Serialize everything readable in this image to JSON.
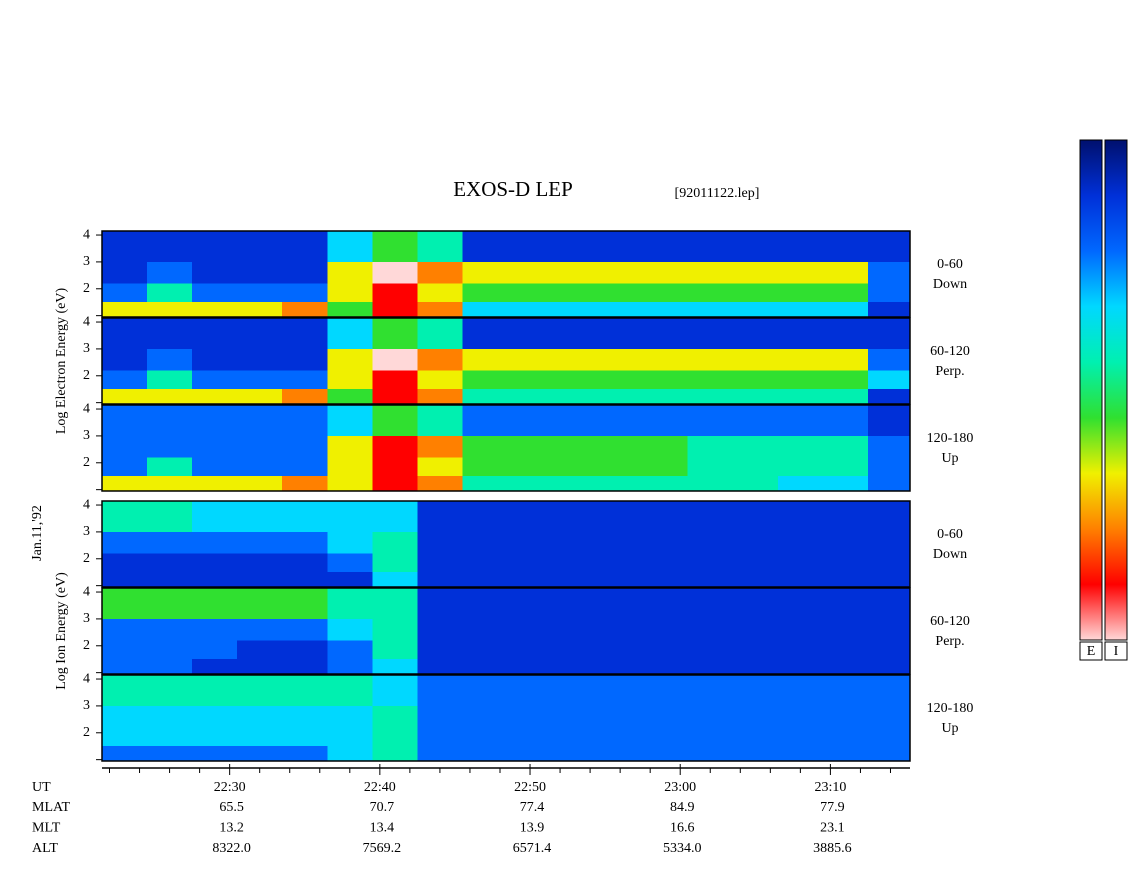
{
  "chart_data": {
    "type": "spectrogram",
    "title": "EXOS-D LEP",
    "subtitle": "[92011122.lep]",
    "date_label": "Jan.11,'92",
    "xlim": [
      21.5,
      75.3
    ],
    "xticks": [
      {
        "value": 30,
        "label": "22:30"
      },
      {
        "value": 40,
        "label": "22:40"
      },
      {
        "value": 50,
        "label": "22:50"
      },
      {
        "value": 60,
        "label": "23:00"
      },
      {
        "value": 70,
        "label": "23:10"
      }
    ],
    "minor_xticks": [
      22,
      24,
      26,
      28,
      32,
      34,
      36,
      38,
      42,
      44,
      46,
      48,
      52,
      54,
      56,
      58,
      62,
      64,
      66,
      68,
      72,
      74
    ],
    "ylim": [
      0.95,
      4.15
    ],
    "yticks": [
      2,
      3,
      4
    ],
    "minor_yticks": [
      1
    ],
    "time_bins": [
      21.5,
      24.5,
      27.5,
      30.5,
      33.5,
      36.5,
      39.5,
      42.5,
      45.5,
      48.5,
      51.5,
      54.5,
      57.5,
      60.5,
      63.5,
      66.5,
      69.5,
      72.5,
      75.3
    ],
    "energy_bins": [
      0.95,
      1.5,
      2.2,
      3,
      4.15
    ],
    "zlim": [
      0,
      9
    ],
    "colormap": [
      "#00106e",
      "#0030d8",
      "#0068ff",
      "#00d8ff",
      "#00f0b0",
      "#30e030",
      "#f0f000",
      "#ff8000",
      "#ff0000",
      "#ffd8d8"
    ],
    "groups": [
      {
        "name": "Log Electron Energy (eV)",
        "colorbar_label": "E",
        "panels": [
          {
            "angle": "0-60",
            "direction": "Down",
            "values": [
              [
                6,
                6,
                6,
                6,
                7,
                5,
                8,
                7,
                3,
                3,
                3,
                3,
                3,
                3,
                3,
                3,
                3,
                1
              ],
              [
                2,
                4,
                2,
                2,
                2,
                6,
                8,
                6,
                5,
                5,
                5,
                5,
                5,
                5,
                5,
                5,
                5,
                2
              ],
              [
                1,
                2,
                1,
                1,
                1,
                6,
                9,
                7,
                6,
                6,
                6,
                6,
                6,
                6,
                6,
                6,
                6,
                2
              ],
              [
                1,
                1,
                1,
                1,
                1,
                3,
                5,
                4,
                1,
                1,
                1,
                1,
                1,
                1,
                1,
                1,
                1,
                1
              ]
            ]
          },
          {
            "angle": "60-120",
            "direction": "Perp.",
            "values": [
              [
                6,
                6,
                6,
                6,
                7,
                5,
                8,
                7,
                4,
                4,
                4,
                4,
                4,
                4,
                4,
                4,
                4,
                1
              ],
              [
                2,
                4,
                2,
                2,
                2,
                6,
                8,
                6,
                5,
                5,
                5,
                5,
                5,
                5,
                5,
                5,
                5,
                3
              ],
              [
                1,
                2,
                1,
                1,
                1,
                6,
                9,
                7,
                6,
                6,
                6,
                6,
                6,
                6,
                6,
                6,
                6,
                2
              ],
              [
                1,
                1,
                1,
                1,
                1,
                3,
                5,
                4,
                1,
                1,
                1,
                1,
                1,
                1,
                1,
                1,
                1,
                1
              ]
            ]
          },
          {
            "angle": "120-180",
            "direction": "Up",
            "values": [
              [
                6,
                6,
                6,
                6,
                7,
                6,
                8,
                7,
                4,
                4,
                4,
                4,
                4,
                4,
                4,
                3,
                3,
                2
              ],
              [
                2,
                4,
                2,
                2,
                2,
                6,
                8,
                6,
                5,
                5,
                5,
                5,
                5,
                4,
                4,
                4,
                4,
                2
              ],
              [
                2,
                2,
                2,
                2,
                2,
                6,
                8,
                7,
                5,
                5,
                5,
                5,
                5,
                4,
                4,
                4,
                4,
                2
              ],
              [
                2,
                2,
                2,
                2,
                2,
                3,
                5,
                4,
                2,
                2,
                2,
                2,
                2,
                2,
                2,
                2,
                2,
                1
              ]
            ]
          }
        ]
      },
      {
        "name": "Log Ion Energy (eV)",
        "colorbar_label": "I",
        "panels": [
          {
            "angle": "0-60",
            "direction": "Down",
            "values": [
              [
                1,
                1,
                1,
                1,
                1,
                1,
                3,
                1,
                1,
                1,
                1,
                1,
                1,
                1,
                1,
                1,
                1,
                1
              ],
              [
                1,
                1,
                1,
                1,
                1,
                2,
                4,
                1,
                1,
                1,
                1,
                1,
                1,
                1,
                1,
                1,
                1,
                1
              ],
              [
                2,
                2,
                2,
                2,
                2,
                3,
                4,
                1,
                1,
                1,
                1,
                1,
                1,
                1,
                1,
                1,
                1,
                1
              ],
              [
                4,
                4,
                3,
                3,
                3,
                3,
                3,
                1,
                1,
                1,
                1,
                1,
                1,
                1,
                1,
                1,
                1,
                1
              ]
            ]
          },
          {
            "angle": "60-120",
            "direction": "Perp.",
            "values": [
              [
                2,
                2,
                1,
                1,
                1,
                2,
                3,
                1,
                1,
                1,
                1,
                1,
                1,
                1,
                1,
                1,
                1,
                1
              ],
              [
                2,
                2,
                2,
                1,
                1,
                2,
                4,
                1,
                1,
                1,
                1,
                1,
                1,
                1,
                1,
                1,
                1,
                1
              ],
              [
                2,
                2,
                2,
                2,
                2,
                3,
                4,
                1,
                1,
                1,
                1,
                1,
                1,
                1,
                1,
                1,
                1,
                1
              ],
              [
                5,
                5,
                5,
                5,
                5,
                4,
                4,
                1,
                1,
                1,
                1,
                1,
                1,
                1,
                1,
                1,
                1,
                1
              ]
            ]
          },
          {
            "angle": "120-180",
            "direction": "Up",
            "values": [
              [
                2,
                2,
                2,
                2,
                2,
                3,
                4,
                2,
                2,
                2,
                2,
                2,
                2,
                2,
                2,
                2,
                2,
                2
              ],
              [
                3,
                3,
                3,
                3,
                3,
                3,
                4,
                2,
                2,
                2,
                2,
                2,
                2,
                2,
                2,
                2,
                2,
                2
              ],
              [
                3,
                3,
                3,
                3,
                3,
                3,
                4,
                2,
                2,
                2,
                2,
                2,
                2,
                2,
                2,
                2,
                2,
                2
              ],
              [
                4,
                4,
                4,
                4,
                4,
                4,
                3,
                2,
                2,
                2,
                2,
                2,
                2,
                2,
                2,
                2,
                2,
                2
              ]
            ]
          }
        ]
      }
    ],
    "ut_label": "UT",
    "orbit": [
      {
        "name": "MLAT",
        "values": [
          65.5,
          70.7,
          77.4,
          84.9,
          77.9
        ]
      },
      {
        "name": "MLT",
        "values": [
          13.2,
          13.4,
          13.9,
          16.6,
          23.1
        ]
      },
      {
        "name": "ALT",
        "values": [
          8322,
          7569.2,
          6571.4,
          5334,
          3885.6
        ],
        "value_labels": [
          "8322.0",
          "7569.2",
          "6571.4",
          "5334.0",
          "3885.6"
        ]
      }
    ]
  }
}
